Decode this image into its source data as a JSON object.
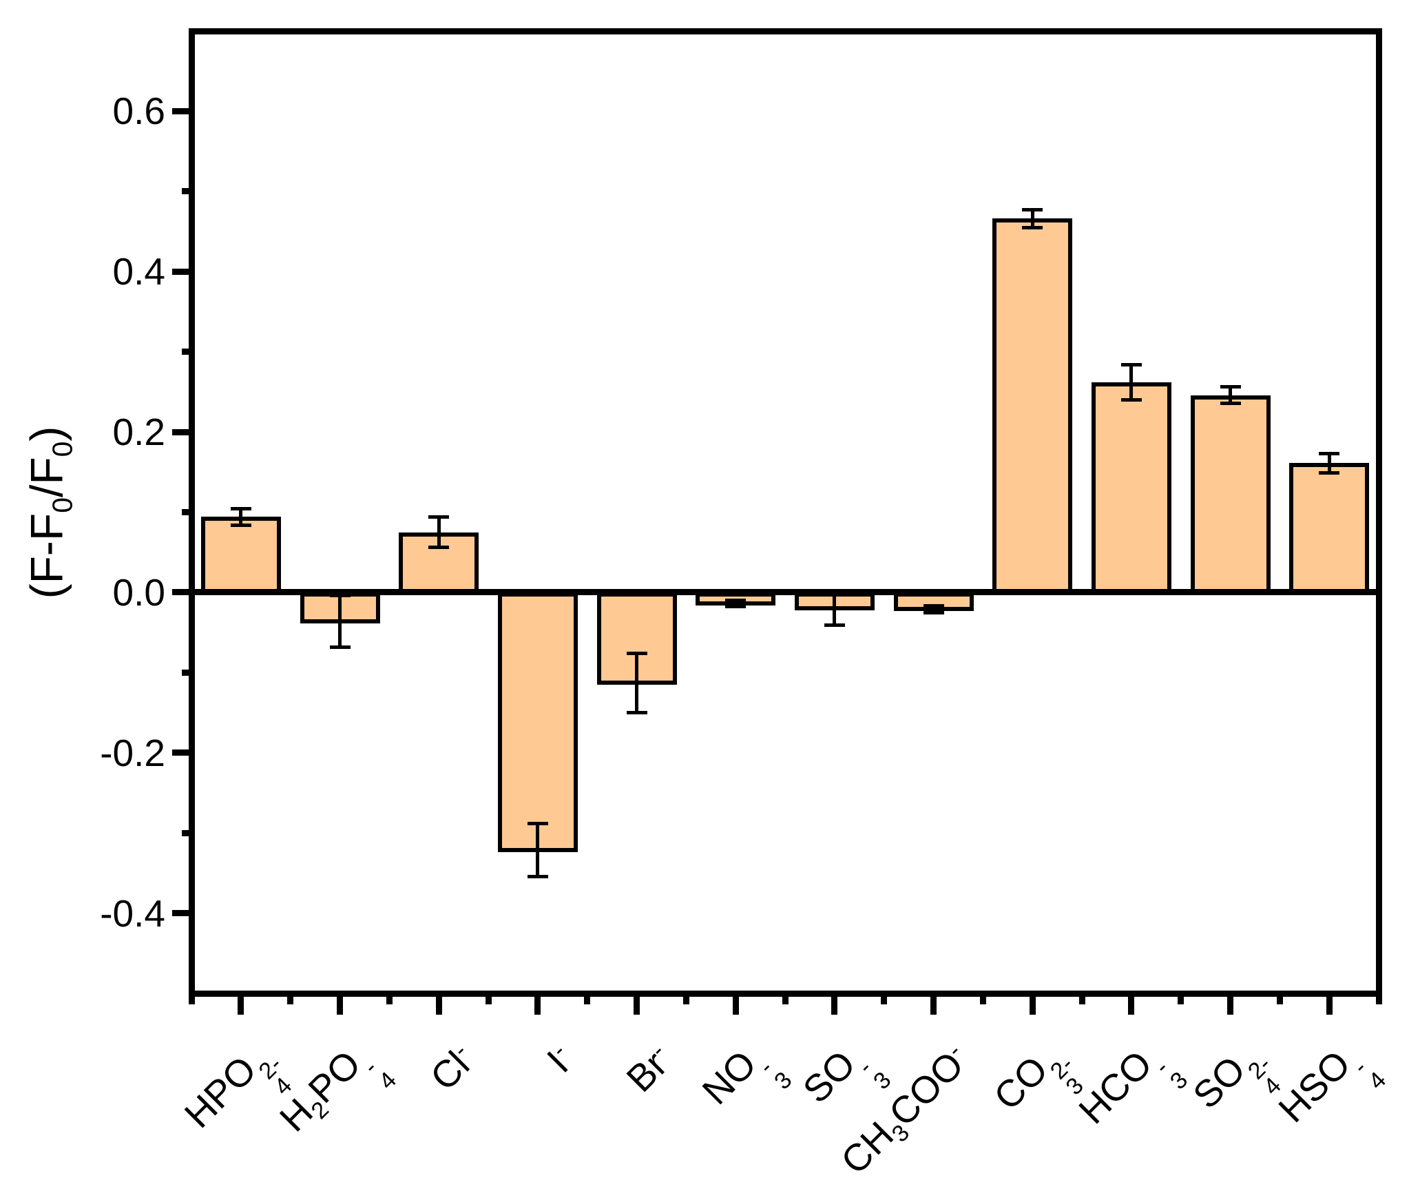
{
  "figure": {
    "background_color": "#ffffff",
    "axis_color": "#000000"
  },
  "chart_data": {
    "type": "bar",
    "title": "",
    "xlabel": "",
    "ylabel": "(F-F₀/F₀)",
    "ylabel_markup": "(F-F~0~/F~0~)",
    "ylim": [
      -0.5,
      0.7
    ],
    "ytick_labeled": [
      0.6,
      0.4,
      0.2,
      0.0,
      -0.2,
      -0.4
    ],
    "ytick_minor": [
      0.5,
      0.3,
      0.1,
      -0.1,
      -0.3
    ],
    "ytick_decimals": 1,
    "grid": false,
    "legend": "none",
    "bar_fill_color": "#FFC994",
    "bar_edge_color": "#000000",
    "error_bars": true,
    "categories": [
      "HPO₄²⁻",
      "H₂PO₄⁻",
      "Cl⁻",
      "I⁻",
      "Br⁻",
      "NO₃⁻",
      "SO₃⁻",
      "CH₃COO⁻",
      "CO₃²⁻",
      "HCO₃⁻",
      "SO₄²⁻",
      "HSO₄⁻"
    ],
    "categories_markup": [
      "HPO~4~^2-^",
      "H~2~PO~4~^-^",
      "Cl^-^",
      "I^-^",
      "Br^-^",
      "NO~3~^-^",
      "SO~3~^-^",
      "CH~3~COO^-^",
      "CO~3~^2-^",
      "HCO~3~^-^",
      "SO~4~^2-^",
      "HSO~4~^-^"
    ],
    "categories_id": [
      "hpo4-2",
      "h2po4",
      "cl",
      "i",
      "br",
      "no3",
      "so3",
      "ch3coo",
      "co3-2",
      "hco3",
      "so4-2",
      "hso4"
    ],
    "values": [
      0.094,
      -0.036,
      0.075,
      -0.321,
      -0.113,
      -0.014,
      -0.02,
      -0.021,
      0.466,
      0.262,
      0.246,
      0.161
    ],
    "errors": [
      0.01,
      0.032,
      0.019,
      0.033,
      0.037,
      0.004,
      0.021,
      0.004,
      0.011,
      0.022,
      0.01,
      0.012
    ]
  }
}
